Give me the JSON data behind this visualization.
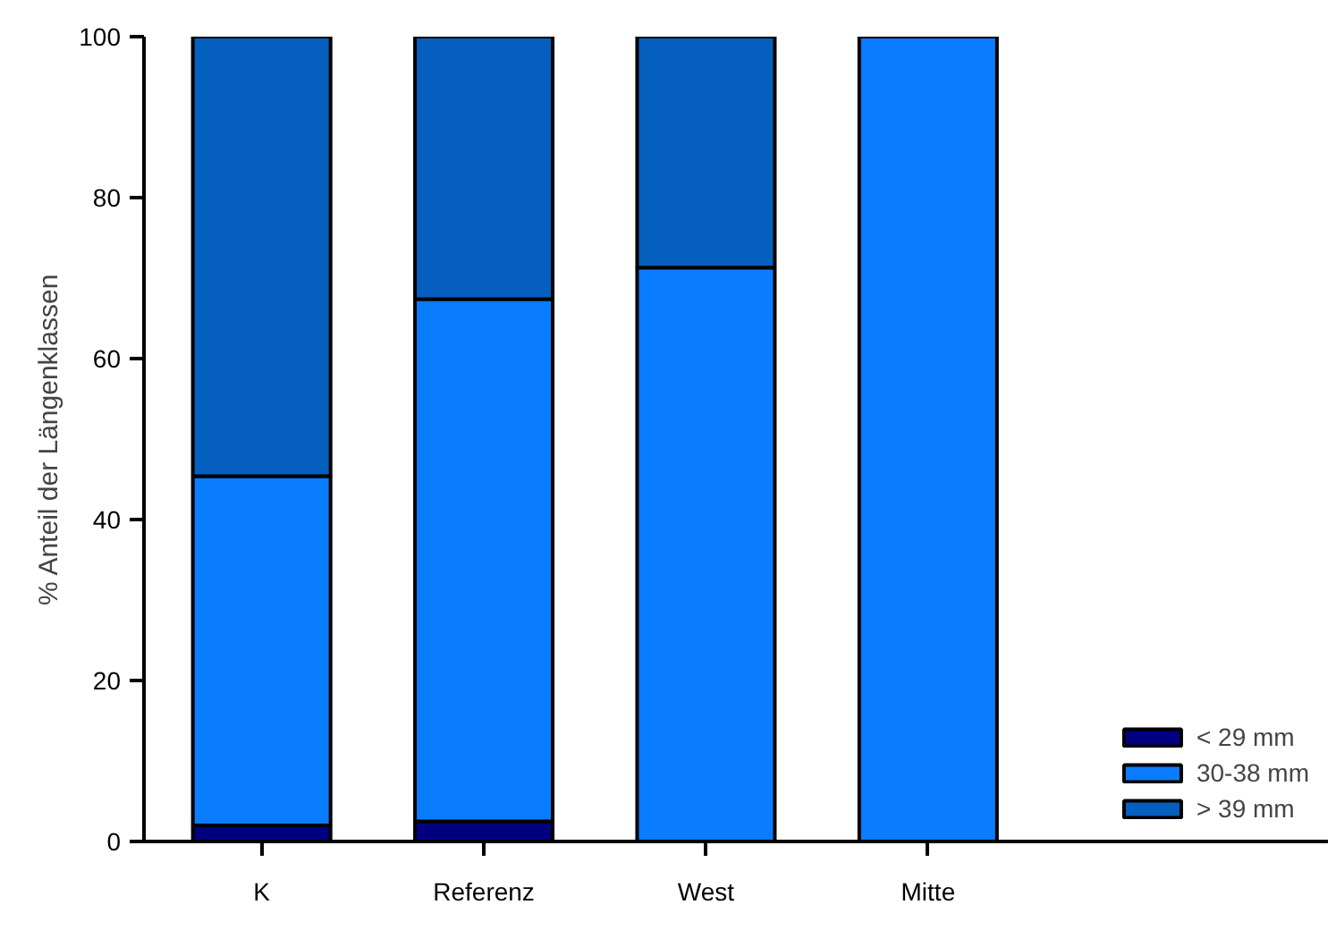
{
  "chart_data": {
    "type": "bar",
    "stacked": true,
    "ylabel": "% Anteil der Längenklassen",
    "categories": [
      "K",
      "Referenz",
      "West",
      "Mitte"
    ],
    "series": [
      {
        "name": "< 29 mm",
        "color": "#000080",
        "values": [
          2.0,
          2.5,
          null,
          null
        ]
      },
      {
        "name": "30-38 mm",
        "color": "#0a7cff",
        "values": [
          43.4,
          64.9,
          71.3,
          100
        ]
      },
      {
        "name": "> 39 mm",
        "color": "#045fbf",
        "values": [
          54.6,
          32.6,
          28.7,
          null
        ]
      }
    ],
    "ylim": [
      0,
      100
    ],
    "yticks": [
      0,
      20,
      40,
      60,
      80,
      100
    ],
    "grid": false,
    "legend": "bottom right"
  }
}
